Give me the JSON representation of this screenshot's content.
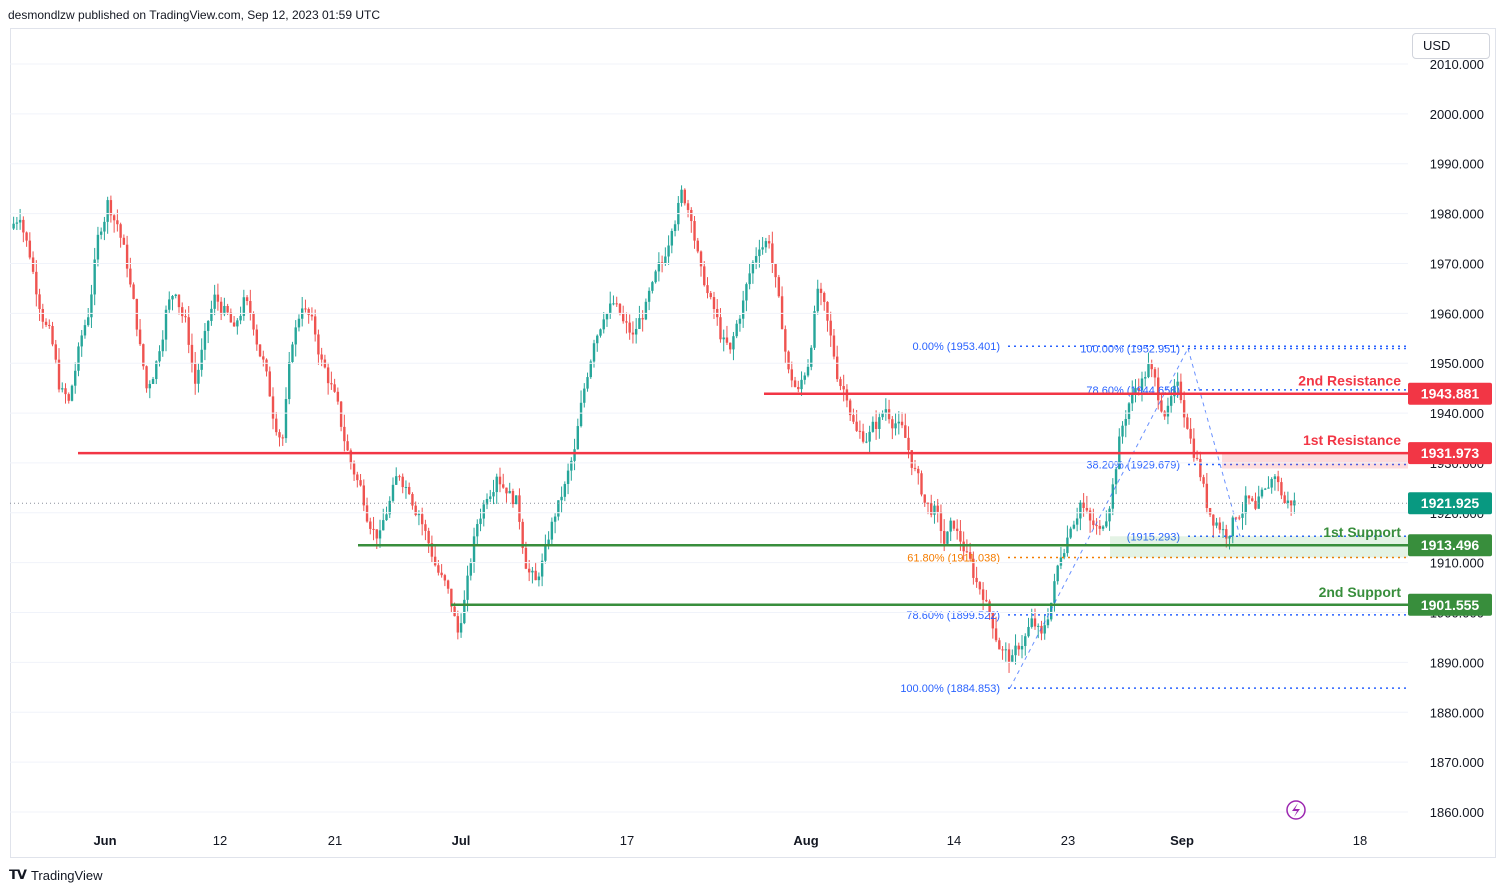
{
  "header": {
    "attribution": "desmondlzw published on TradingView.com, Sep 12, 2023 01:59 UTC"
  },
  "currency": {
    "label": "USD"
  },
  "footer": {
    "brand": "TradingView"
  },
  "colors": {
    "up": "#26a69a",
    "down": "#ef5350",
    "resistance": "#f23645",
    "support": "#388e3c",
    "fib": "#2962ff",
    "fib_orange": "#f57c00",
    "current": "#089981",
    "grid": "#f0f3fa",
    "axis_text": "#131722"
  },
  "chart_data": {
    "type": "candlestick",
    "instrument_currency": "USD",
    "price_axis": {
      "min": 1855,
      "max": 2012,
      "ticks": [
        2010,
        2000,
        1990,
        1980,
        1970,
        1960,
        1950,
        1940,
        1930,
        1920,
        1910,
        1900,
        1890,
        1880,
        1870,
        1860
      ],
      "tick_format": "0.000"
    },
    "time_axis": {
      "labels": [
        "Jun",
        "12",
        "21",
        "Jul",
        "17",
        "Aug",
        "14",
        "23",
        "Sep",
        "18"
      ],
      "bold": [
        "Jun",
        "Jul",
        "Aug",
        "Sep"
      ]
    },
    "current_price": 1921.925,
    "levels": [
      {
        "name": "2nd Resistance",
        "price": 1943.881,
        "kind": "resistance",
        "label": "1943.881"
      },
      {
        "name": "1st Resistance",
        "price": 1931.973,
        "kind": "resistance",
        "label": "1931.973"
      },
      {
        "name": "1st Support",
        "price": 1913.496,
        "kind": "support",
        "label": "1913.496"
      },
      {
        "name": "2nd Support",
        "price": 1901.555,
        "kind": "support",
        "label": "1901.555"
      }
    ],
    "fib_retracement_left": [
      {
        "text": "0.00% (1953.401)",
        "price": 1953.401
      },
      {
        "text": "61.80% (1911.038)",
        "price": 1911.038
      },
      {
        "text": "78.60% (1899.522)",
        "price": 1899.522
      },
      {
        "text": "100.00% (1884.853)",
        "price": 1884.853
      }
    ],
    "fib_retracement_right": [
      {
        "text": "100.00% (1952.951)",
        "price": 1952.951
      },
      {
        "text": "78.60% (1944.658)",
        "price": 1944.658
      },
      {
        "text": "38.20% (1929.679)",
        "price": 1929.679
      },
      {
        "text": "(1915.293)",
        "price": 1915.293
      }
    ],
    "daily_closes": [
      1980,
      1972,
      1962,
      1956,
      1946,
      1942,
      1952,
      1960,
      1975,
      1982,
      1978,
      1970,
      1958,
      1945,
      1950,
      1960,
      1965,
      1958,
      1946,
      1955,
      1963,
      1960,
      1956,
      1962,
      1958,
      1950,
      1940,
      1935,
      1955,
      1962,
      1958,
      1950,
      1945,
      1938,
      1930,
      1925,
      1918,
      1915,
      1922,
      1928,
      1925,
      1920,
      1914,
      1908,
      1904,
      1896,
      1906,
      1918,
      1924,
      1928,
      1925,
      1922,
      1910,
      1906,
      1912,
      1920,
      1925,
      1932,
      1945,
      1955,
      1960,
      1962,
      1958,
      1955,
      1960,
      1965,
      1970,
      1978,
      1984,
      1980,
      1968,
      1962,
      1956,
      1952,
      1960,
      1968,
      1974,
      1975,
      1962,
      1948,
      1944,
      1950,
      1965,
      1958,
      1948,
      1944,
      1936,
      1935,
      1938,
      1941,
      1938,
      1935,
      1928,
      1922,
      1920,
      1914,
      1918,
      1913,
      1908,
      1904,
      1898,
      1892,
      1890,
      1894,
      1898,
      1895,
      1902,
      1912,
      1918,
      1922,
      1918,
      1916,
      1922,
      1934,
      1942,
      1946,
      1949,
      1944,
      1940,
      1945,
      1938,
      1930,
      1922,
      1918,
      1916,
      1920,
      1922,
      1920,
      1924,
      1928,
      1922,
      1921.925
    ]
  }
}
